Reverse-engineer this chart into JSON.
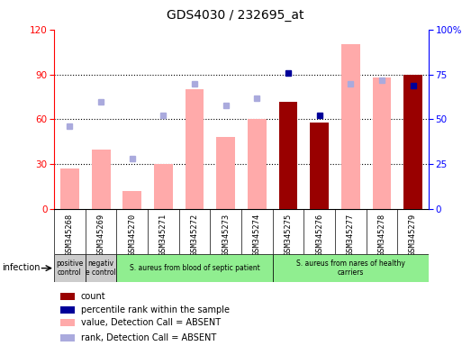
{
  "title": "GDS4030 / 232695_at",
  "samples": [
    "GSM345268",
    "GSM345269",
    "GSM345270",
    "GSM345271",
    "GSM345272",
    "GSM345273",
    "GSM345274",
    "GSM345275",
    "GSM345276",
    "GSM345277",
    "GSM345278",
    "GSM345279"
  ],
  "left_ylim": [
    0,
    120
  ],
  "right_ylim": [
    0,
    100
  ],
  "left_yticks": [
    0,
    30,
    60,
    90,
    120
  ],
  "right_yticks": [
    0,
    25,
    50,
    75,
    100
  ],
  "right_yticklabels": [
    "0",
    "25",
    "50",
    "75",
    "100%"
  ],
  "count_values": [
    0,
    0,
    0,
    0,
    0,
    0,
    0,
    72,
    58,
    0,
    0,
    90
  ],
  "rank_values": [
    0,
    0,
    0,
    0,
    0,
    0,
    0,
    76,
    52,
    0,
    0,
    69
  ],
  "absent_bar_values": [
    27,
    40,
    12,
    30,
    80,
    48,
    60,
    0,
    0,
    110,
    88,
    0
  ],
  "absent_rank_values": [
    46,
    60,
    28,
    52,
    70,
    58,
    62,
    0,
    0,
    70,
    72,
    0
  ],
  "count_color": "#990000",
  "rank_color": "#000099",
  "absent_bar_color": "#ffaaaa",
  "absent_rank_color": "#aaaadd",
  "group_labels": [
    {
      "text": "positive\ncontrol",
      "start": 0,
      "end": 1,
      "color": "#cccccc"
    },
    {
      "text": "negativ\ne control",
      "start": 1,
      "end": 2,
      "color": "#cccccc"
    },
    {
      "text": "S. aureus from blood of septic patient",
      "start": 2,
      "end": 7,
      "color": "#90ee90"
    },
    {
      "text": "S. aureus from nares of healthy\ncarriers",
      "start": 7,
      "end": 12,
      "color": "#90ee90"
    }
  ],
  "infection_label": "infection",
  "legend_items": [
    {
      "label": "count",
      "color": "#990000"
    },
    {
      "label": "percentile rank within the sample",
      "color": "#000099"
    },
    {
      "label": "value, Detection Call = ABSENT",
      "color": "#ffaaaa"
    },
    {
      "label": "rank, Detection Call = ABSENT",
      "color": "#aaaadd"
    }
  ],
  "background_color": "#ffffff",
  "tick_area_color": "#d0d0d0"
}
